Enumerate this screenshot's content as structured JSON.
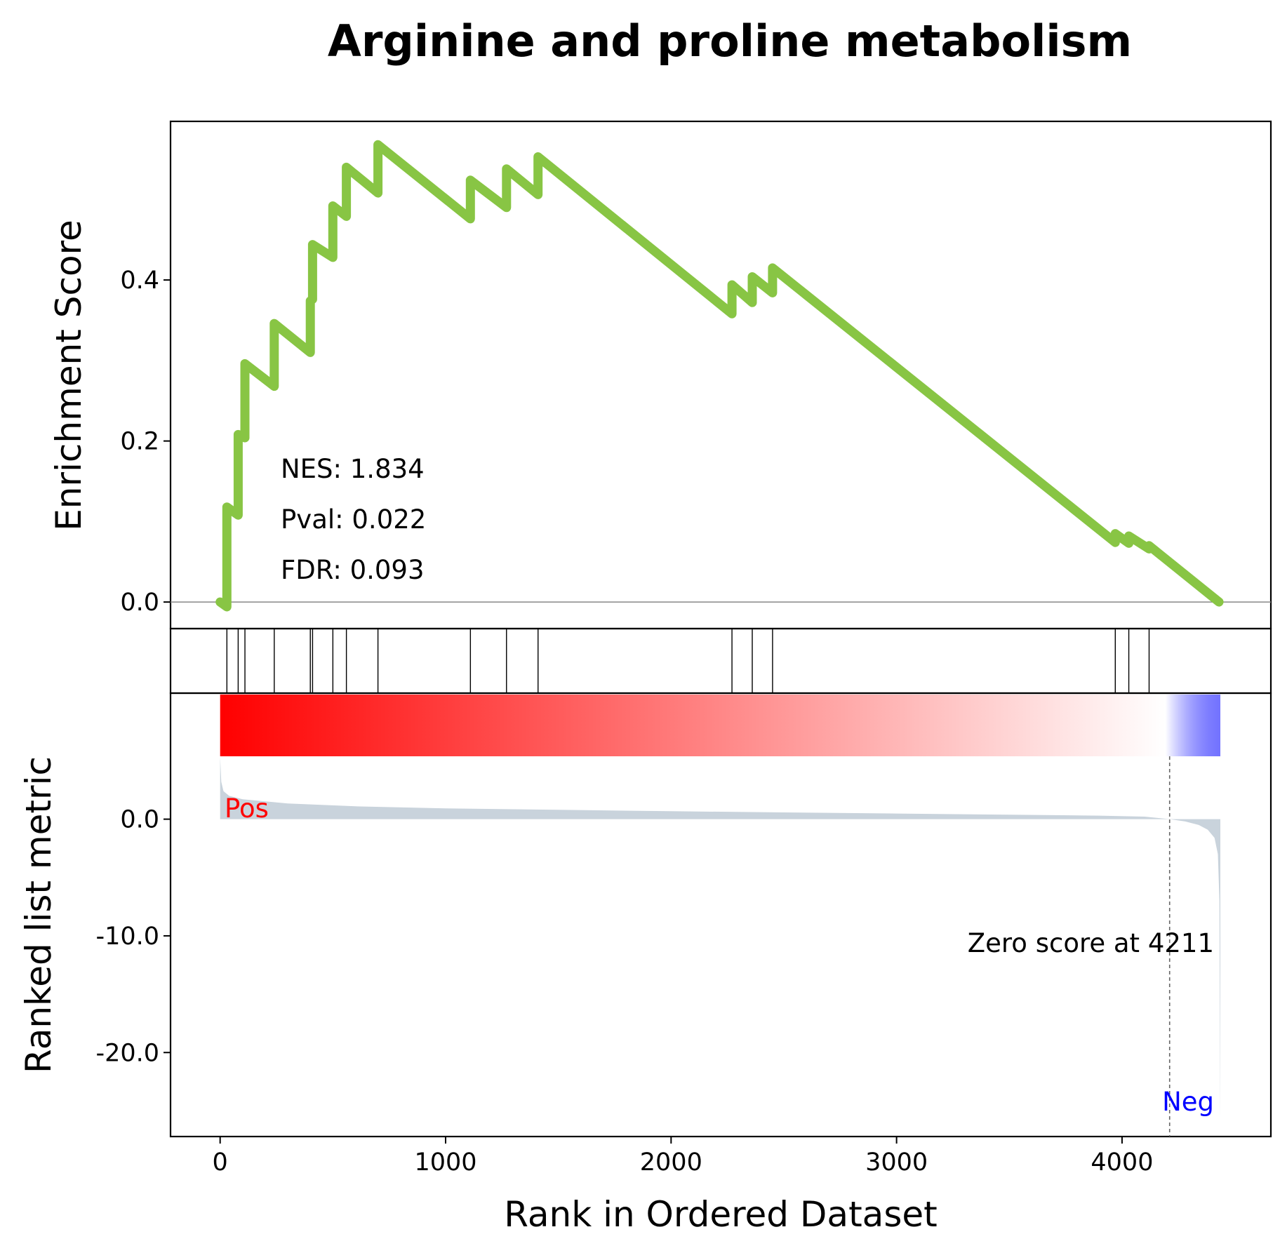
{
  "chart_data": {
    "type": "line",
    "title": "Arginine and proline metabolism",
    "xlabel": "Rank in Ordered Dataset",
    "xlim": [
      -220,
      4660
    ],
    "x_ticks": [
      0,
      1000,
      2000,
      3000,
      4000
    ],
    "x_tick_labels": [
      "0",
      "1000",
      "2000",
      "3000",
      "4000"
    ],
    "enrichment": {
      "ylabel": "Enrichment Score",
      "ylim": [
        -0.033,
        0.597
      ],
      "y_ticks": [
        0.0,
        0.2,
        0.4
      ],
      "y_tick_labels": [
        "0.0",
        "0.2",
        "0.4"
      ],
      "line_color": "#88c544",
      "points": [
        [
          0,
          0.0
        ],
        [
          30,
          -0.006
        ],
        [
          30,
          0.118
        ],
        [
          80,
          0.108
        ],
        [
          80,
          0.208
        ],
        [
          110,
          0.204
        ],
        [
          110,
          0.296
        ],
        [
          240,
          0.268
        ],
        [
          240,
          0.346
        ],
        [
          400,
          0.31
        ],
        [
          400,
          0.374
        ],
        [
          410,
          0.376
        ],
        [
          410,
          0.444
        ],
        [
          500,
          0.428
        ],
        [
          500,
          0.492
        ],
        [
          560,
          0.479
        ],
        [
          560,
          0.54
        ],
        [
          700,
          0.508
        ],
        [
          700,
          0.568
        ],
        [
          1110,
          0.476
        ],
        [
          1110,
          0.524
        ],
        [
          1270,
          0.49
        ],
        [
          1270,
          0.538
        ],
        [
          1410,
          0.506
        ],
        [
          1410,
          0.553
        ],
        [
          2270,
          0.358
        ],
        [
          2270,
          0.394
        ],
        [
          2360,
          0.372
        ],
        [
          2360,
          0.404
        ],
        [
          2450,
          0.384
        ],
        [
          2450,
          0.415
        ],
        [
          3970,
          0.074
        ],
        [
          3970,
          0.085
        ],
        [
          4030,
          0.073
        ],
        [
          4030,
          0.082
        ],
        [
          4120,
          0.066
        ],
        [
          4120,
          0.07
        ],
        [
          4430,
          0.0
        ]
      ],
      "annotations": [
        "NES: 1.834",
        "Pval: 0.022",
        "FDR: 0.093"
      ]
    },
    "hits": {
      "positions": [
        30,
        80,
        110,
        240,
        400,
        410,
        500,
        560,
        700,
        1110,
        1270,
        1410,
        2270,
        2360,
        2450,
        3970,
        4030,
        4120
      ]
    },
    "ranked_metric": {
      "ylabel": "Ranked list metric",
      "ylim": [
        -27.2,
        10.8
      ],
      "y_ticks": [
        0.0,
        -10.0,
        -20.0
      ],
      "y_tick_labels": [
        "0.0",
        "-10.0",
        "-20.0"
      ],
      "fill_color": "#c9d3dc",
      "points": [
        [
          0,
          5.3
        ],
        [
          5,
          3.2
        ],
        [
          15,
          2.4
        ],
        [
          40,
          2.0
        ],
        [
          100,
          1.7
        ],
        [
          300,
          1.35
        ],
        [
          600,
          1.1
        ],
        [
          1000,
          0.92
        ],
        [
          1500,
          0.8
        ],
        [
          2000,
          0.68
        ],
        [
          2500,
          0.58
        ],
        [
          3000,
          0.48
        ],
        [
          3500,
          0.38
        ],
        [
          3900,
          0.3
        ],
        [
          4100,
          0.22
        ],
        [
          4211,
          0.0
        ],
        [
          4280,
          -0.2
        ],
        [
          4340,
          -0.5
        ],
        [
          4380,
          -0.9
        ],
        [
          4410,
          -1.6
        ],
        [
          4425,
          -3.0
        ],
        [
          4432,
          -7.0
        ],
        [
          4436,
          -26.0
        ]
      ],
      "zero_cross": 4211,
      "zero_cross_label": "Zero score at 4211",
      "pos_label": "Pos",
      "neg_label": "Neg",
      "pos_color": "#ff0000",
      "neg_color": "#0000ff",
      "gradient_colors": [
        "#ff0000",
        "#ffffff",
        "#0000ff"
      ]
    }
  }
}
